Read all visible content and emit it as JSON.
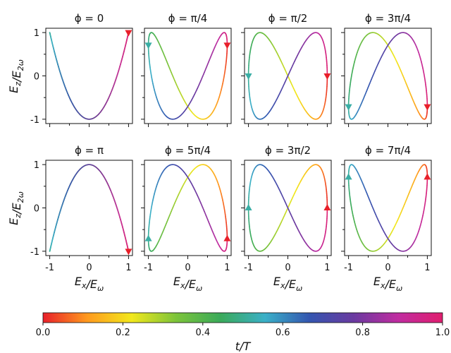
{
  "chart_data": [
    {
      "type": "line",
      "title": "ϕ = 0",
      "phi_over_pi": 0,
      "x_expr": "cos(2πt/T)",
      "y_expr": "cos(2·2πt/T + ϕ)",
      "xlim": [
        -1.1,
        1.1
      ],
      "ylim": [
        -1.1,
        1.1
      ],
      "yticks": [
        "1",
        "0",
        "-1"
      ],
      "xticks": [],
      "arrow_start": null,
      "arrow_end": {
        "x": 1,
        "y": 1
      }
    },
    {
      "type": "line",
      "title": "ϕ = π/4",
      "phi_over_pi": 0.25,
      "x_expr": "cos(2πt/T)",
      "y_expr": "cos(2·2πt/T + ϕ)",
      "xlim": [
        -1.1,
        1.1
      ],
      "ylim": [
        -1.1,
        1.1
      ],
      "yticks": [],
      "xticks": [],
      "arrow_start": {
        "x": -1,
        "y": 0.71
      },
      "arrow_end": {
        "x": 1,
        "y": 0.71
      }
    },
    {
      "type": "line",
      "title": "ϕ = π/2",
      "phi_over_pi": 0.5,
      "x_expr": "cos(2πt/T)",
      "y_expr": "cos(2·2πt/T + ϕ)",
      "xlim": [
        -1.1,
        1.1
      ],
      "ylim": [
        -1.1,
        1.1
      ],
      "yticks": [],
      "xticks": [],
      "arrow_start": {
        "x": -1,
        "y": 0
      },
      "arrow_end": {
        "x": 1,
        "y": 0
      }
    },
    {
      "type": "line",
      "title": "ϕ = 3π/4",
      "phi_over_pi": 0.75,
      "x_expr": "cos(2πt/T)",
      "y_expr": "cos(2·2πt/T + ϕ)",
      "xlim": [
        -1.1,
        1.1
      ],
      "ylim": [
        -1.1,
        1.1
      ],
      "yticks": [],
      "xticks": [],
      "arrow_start": {
        "x": -1,
        "y": -0.71
      },
      "arrow_end": {
        "x": 1,
        "y": -0.71
      }
    },
    {
      "type": "line",
      "title": "ϕ = π",
      "phi_over_pi": 1,
      "x_expr": "cos(2πt/T)",
      "y_expr": "cos(2·2πt/T + ϕ)",
      "xlim": [
        -1.1,
        1.1
      ],
      "ylim": [
        -1.1,
        1.1
      ],
      "yticks": [
        "1",
        "0",
        "-1"
      ],
      "xticks": [
        "-1",
        "0",
        "1"
      ],
      "arrow_start": null,
      "arrow_end": {
        "x": 1,
        "y": -1
      }
    },
    {
      "type": "line",
      "title": "ϕ = 5π/4",
      "phi_over_pi": 1.25,
      "x_expr": "cos(2πt/T)",
      "y_expr": "cos(2·2πt/T + ϕ)",
      "xlim": [
        -1.1,
        1.1
      ],
      "ylim": [
        -1.1,
        1.1
      ],
      "yticks": [],
      "xticks": [
        "-1",
        "0",
        "1"
      ],
      "arrow_start": {
        "x": -1,
        "y": -0.71
      },
      "arrow_end": {
        "x": 1,
        "y": -0.71
      }
    },
    {
      "type": "line",
      "title": "ϕ = 3π/2",
      "phi_over_pi": 1.5,
      "x_expr": "cos(2πt/T)",
      "y_expr": "cos(2·2πt/T + ϕ)",
      "xlim": [
        -1.1,
        1.1
      ],
      "ylim": [
        -1.1,
        1.1
      ],
      "yticks": [],
      "xticks": [
        "-1",
        "0",
        "1"
      ],
      "arrow_start": {
        "x": -1,
        "y": 0
      },
      "arrow_end": {
        "x": 1,
        "y": 0
      }
    },
    {
      "type": "line",
      "title": "ϕ = 7π/4",
      "phi_over_pi": 1.75,
      "x_expr": "cos(2πt/T)",
      "y_expr": "cos(2·2πt/T + ϕ)",
      "xlim": [
        -1.1,
        1.1
      ],
      "ylim": [
        -1.1,
        1.1
      ],
      "yticks": [],
      "xticks": [
        "-1",
        "0",
        "1"
      ],
      "arrow_start": {
        "x": -1,
        "y": 0.71
      },
      "arrow_end": {
        "x": 1,
        "y": 0.71
      }
    }
  ],
  "labels": {
    "ylabel": "E_z/E_2ω",
    "xlabel": "E_x/E_ω",
    "colorbar_label": "t/T"
  },
  "colorbar": {
    "ticks": [
      "0.0",
      "0.2",
      "0.4",
      "0.6",
      "0.8",
      "1.0"
    ],
    "range": [
      0,
      1
    ],
    "colors": [
      "#e8202a",
      "#ff9a1e",
      "#f2e81c",
      "#7cc43a",
      "#3aaa5a",
      "#3ab0c8",
      "#3456b0",
      "#6a3aa0",
      "#c02ca0",
      "#e01e6e"
    ]
  }
}
